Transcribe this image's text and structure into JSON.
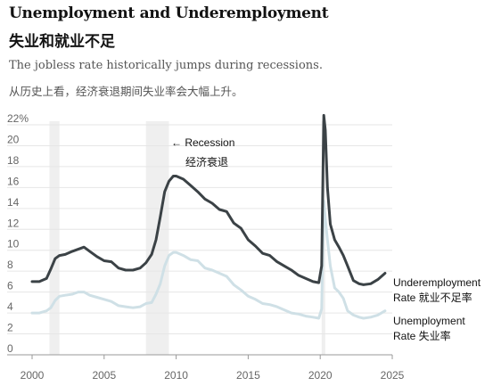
{
  "title": "Unemployment and Underemployment",
  "title_zh": "失业和就业不足",
  "subtitle": "The jobless rate historically jumps during recessions.",
  "subtitle_zh": "从历史上看，经济衰退期间失业率会大幅上升。",
  "chart_data": {
    "type": "line",
    "ylim": [
      0,
      22
    ],
    "xlim": [
      2000,
      2025
    ],
    "yticks": [
      "0",
      "2",
      "4",
      "6",
      "8",
      "10",
      "12",
      "14",
      "16",
      "18",
      "20",
      "22%"
    ],
    "xticks": [
      "2000",
      "2005",
      "2010",
      "2015",
      "2020",
      "2025"
    ],
    "grid": true,
    "recession_annotation": {
      "label": "← Recession",
      "label_zh": "经济衰退"
    },
    "recessions": [
      [
        2001.2,
        2001.9
      ],
      [
        2007.9,
        2009.5
      ],
      [
        2020.1,
        2020.35
      ]
    ],
    "series": [
      {
        "name": "Underemployment",
        "name_line2": "Rate  就业不足率",
        "color": "#3b4246",
        "x": [
          2000.0,
          2000.5,
          2001.0,
          2001.3,
          2001.6,
          2001.9,
          2002.3,
          2002.8,
          2003.2,
          2003.6,
          2004.0,
          2004.5,
          2005.0,
          2005.5,
          2006.0,
          2006.5,
          2007.0,
          2007.5,
          2007.9,
          2008.3,
          2008.6,
          2008.9,
          2009.2,
          2009.5,
          2009.8,
          2010.0,
          2010.5,
          2011.0,
          2011.5,
          2012.0,
          2012.5,
          2013.0,
          2013.5,
          2014.0,
          2014.5,
          2015.0,
          2015.5,
          2016.0,
          2016.5,
          2017.0,
          2017.5,
          2018.0,
          2018.5,
          2019.0,
          2019.5,
          2019.9,
          2020.1,
          2020.25,
          2020.35,
          2020.5,
          2020.7,
          2021.0,
          2021.3,
          2021.6,
          2021.9,
          2022.3,
          2022.7,
          2023.0,
          2023.5,
          2024.0,
          2024.5
        ],
        "values": [
          7.0,
          7.0,
          7.3,
          8.2,
          9.2,
          9.5,
          9.6,
          9.9,
          10.1,
          10.3,
          9.9,
          9.4,
          9.0,
          8.9,
          8.3,
          8.1,
          8.1,
          8.3,
          8.8,
          9.6,
          11.0,
          13.2,
          15.6,
          16.6,
          17.1,
          17.1,
          16.8,
          16.2,
          15.6,
          14.9,
          14.5,
          13.9,
          13.7,
          12.6,
          12.1,
          11.0,
          10.4,
          9.7,
          9.5,
          8.9,
          8.5,
          8.1,
          7.6,
          7.3,
          7.0,
          6.9,
          8.5,
          22.9,
          21.5,
          16.0,
          12.5,
          11.0,
          10.3,
          9.5,
          8.5,
          7.1,
          6.8,
          6.7,
          6.8,
          7.2,
          7.8
        ]
      },
      {
        "name": "Unemployment",
        "name_line2": "Rate  失业率",
        "color": "#cfe0e6",
        "x": [
          2000.0,
          2000.5,
          2001.0,
          2001.3,
          2001.6,
          2001.9,
          2002.3,
          2002.8,
          2003.2,
          2003.6,
          2004.0,
          2004.5,
          2005.0,
          2005.5,
          2006.0,
          2006.5,
          2007.0,
          2007.5,
          2007.9,
          2008.3,
          2008.6,
          2008.9,
          2009.2,
          2009.5,
          2009.8,
          2010.0,
          2010.5,
          2011.0,
          2011.5,
          2012.0,
          2012.5,
          2013.0,
          2013.5,
          2014.0,
          2014.5,
          2015.0,
          2015.5,
          2016.0,
          2016.5,
          2017.0,
          2017.5,
          2018.0,
          2018.5,
          2019.0,
          2019.5,
          2019.9,
          2020.1,
          2020.25,
          2020.35,
          2020.5,
          2020.7,
          2021.0,
          2021.3,
          2021.6,
          2021.9,
          2022.3,
          2022.7,
          2023.0,
          2023.5,
          2024.0,
          2024.5
        ],
        "values": [
          4.0,
          4.0,
          4.2,
          4.5,
          5.2,
          5.6,
          5.7,
          5.8,
          6.0,
          6.0,
          5.7,
          5.5,
          5.3,
          5.1,
          4.7,
          4.6,
          4.5,
          4.6,
          4.9,
          5.0,
          5.8,
          6.8,
          8.5,
          9.5,
          9.8,
          9.8,
          9.5,
          9.1,
          9.0,
          8.3,
          8.1,
          7.8,
          7.5,
          6.7,
          6.2,
          5.6,
          5.3,
          4.9,
          4.8,
          4.6,
          4.3,
          4.0,
          3.9,
          3.7,
          3.6,
          3.5,
          4.4,
          14.7,
          13.0,
          11.0,
          8.5,
          6.4,
          6.0,
          5.4,
          4.2,
          3.8,
          3.6,
          3.5,
          3.6,
          3.8,
          4.2
        ]
      }
    ]
  }
}
